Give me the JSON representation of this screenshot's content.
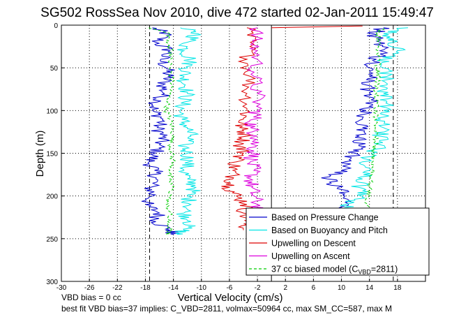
{
  "chart_data": {
    "type": "line",
    "title": "SG502 RossSea Nov 2010, dive 472 started 02-Jan-2011 15:49:47",
    "xlabel": "Vertical Velocity (cm/s)",
    "ylabel": "Depth (m)",
    "xlim": [
      -30,
      22
    ],
    "ylim": [
      0,
      300
    ],
    "y_reversed": true,
    "grid": true,
    "x_ticks": [
      -30,
      -26,
      -22,
      -18,
      -14,
      -10,
      -6,
      -2,
      2,
      6,
      10,
      14,
      18
    ],
    "y_ticks": [
      0,
      50,
      100,
      150,
      200,
      250,
      300
    ],
    "vertical_lines": [
      {
        "x": -17.4,
        "style": "dashed",
        "color": "#000000"
      },
      {
        "x": 17.4,
        "style": "dashed",
        "color": "#000000"
      },
      {
        "x": 0,
        "style": "solid",
        "color": "#000000"
      }
    ],
    "legend_position": "bottom-right",
    "series": [
      {
        "name": "Based on Pressure Change",
        "color": "#0000cc",
        "style": "solid",
        "descent": {
          "depth": [
            3,
            10,
            20,
            30,
            40,
            50,
            60,
            70,
            80,
            90,
            100,
            110,
            120,
            130,
            140,
            150,
            160,
            170,
            180,
            190,
            200,
            210,
            220,
            230,
            240,
            245
          ],
          "velocity": [
            -17,
            -15,
            -16.5,
            -14.5,
            -15.8,
            -15,
            -14.8,
            -15.5,
            -15.3,
            -16.3,
            -17,
            -15.5,
            -16.3,
            -15.5,
            -16,
            -16.5,
            -17.5,
            -16.7,
            -16.5,
            -17.3,
            -17,
            -18,
            -16,
            -16.5,
            -14.5,
            -14
          ]
        },
        "ascent": {
          "depth": [
            245,
            230,
            220,
            210,
            200,
            190,
            180,
            170,
            160,
            150,
            140,
            130,
            120,
            110,
            100,
            90,
            80,
            70,
            60,
            50,
            40,
            30,
            20,
            10,
            3
          ],
          "velocity": [
            9,
            9.5,
            10.5,
            11,
            10.5,
            9.5,
            8,
            10,
            10.5,
            12,
            12.5,
            12.5,
            13,
            13,
            13.5,
            14.5,
            14,
            13.5,
            14,
            14,
            15,
            15.5,
            15.5,
            14.5,
            16
          ]
        }
      },
      {
        "name": "Based on Buoyancy and Pitch",
        "color": "#00e5e5",
        "style": "solid",
        "descent": {
          "depth": [
            3,
            10,
            20,
            30,
            40,
            50,
            60,
            70,
            80,
            90,
            100,
            110,
            120,
            130,
            140,
            150,
            160,
            170,
            180,
            190,
            200,
            210,
            220,
            230,
            240,
            245
          ],
          "velocity": [
            -13,
            -10.5,
            -12,
            -12.5,
            -11.5,
            -12,
            -12.5,
            -12.3,
            -12,
            -12.5,
            -13,
            -12.8,
            -12,
            -11.5,
            -12.5,
            -12,
            -11.8,
            -12.5,
            -12,
            -10.8,
            -12,
            -11.5,
            -12.5,
            -11.5,
            -12.5,
            -13.5
          ]
        },
        "ascent": {
          "depth": [
            245,
            230,
            220,
            210,
            200,
            190,
            180,
            170,
            160,
            150,
            140,
            130,
            120,
            110,
            100,
            90,
            80,
            70,
            60,
            50,
            40,
            30,
            20,
            10,
            3
          ],
          "velocity": [
            12,
            11,
            12.5,
            10.5,
            13,
            12.5,
            13,
            14,
            13,
            14.5,
            15.5,
            15.5,
            16,
            15.5,
            16,
            16.5,
            16,
            16.5,
            16.5,
            16,
            16,
            18,
            17.5,
            16,
            19.5
          ]
        }
      },
      {
        "name": "Upwelling on Descent",
        "color": "#dd0000",
        "style": "solid",
        "descent": {
          "depth": [
            3,
            20,
            40,
            60,
            80,
            100,
            110,
            120,
            130,
            140,
            150,
            160,
            170,
            180,
            190,
            200,
            210,
            220,
            230,
            240
          ],
          "velocity": [
            -3.5,
            -3,
            -3.5,
            -3,
            -3.5,
            -3.5,
            -4,
            -4.5,
            -3.5,
            -4.5,
            -4,
            -5,
            -5.5,
            -5.5,
            -6,
            -5,
            -3.5,
            -4,
            -3.5,
            -4
          ]
        },
        "ascent": {
          "depth": [
            3,
            2,
            1
          ],
          "velocity": [
            0,
            7,
            13
          ]
        }
      },
      {
        "name": "Upwelling on Ascent",
        "color": "#dd00dd",
        "style": "solid",
        "descent": {
          "depth": [
            3,
            20,
            40,
            60,
            80,
            100,
            110,
            120,
            130,
            140,
            150,
            160,
            170,
            180,
            190,
            200,
            210,
            220,
            230,
            240
          ],
          "velocity": [
            -2,
            -2.5,
            -2,
            -2.5,
            -2,
            -2,
            -2.5,
            -3,
            -2,
            -2.5,
            -2.5,
            -3,
            -2.5,
            -3,
            -2.8,
            -2.5,
            -2,
            -1.5,
            -2,
            -2.5
          ]
        },
        "ascent": {
          "depth": [],
          "velocity": []
        }
      },
      {
        "name": "37 cc biased model (C_VBD=2811)",
        "color": "#00cc00",
        "style": "dashed",
        "descent": {
          "depth": [
            3,
            10,
            20,
            30,
            40,
            50,
            60,
            70,
            80,
            90,
            100,
            110,
            120,
            130,
            140,
            150,
            160,
            170,
            180,
            190,
            200,
            210,
            220,
            230,
            240,
            245
          ],
          "velocity": [
            -17.5,
            -14.5,
            -15,
            -14.2,
            -14.5,
            -14.5,
            -14.3,
            -14.2,
            -14.5,
            -14.8,
            -15,
            -14.5,
            -14.2,
            -14,
            -14.5,
            -14.3,
            -14,
            -14.5,
            -14.5,
            -14.2,
            -14.5,
            -15,
            -14.5,
            -14.8,
            -14.5,
            -15
          ]
        },
        "ascent": {
          "depth": [
            245,
            230,
            220,
            210,
            200,
            190,
            180,
            170,
            160,
            150,
            140,
            130,
            120,
            110,
            100,
            90,
            80,
            70,
            60,
            50,
            40,
            30,
            20,
            10,
            3
          ],
          "velocity": [
            13.5,
            13.5,
            13.8,
            13.5,
            14,
            14,
            14.2,
            14.5,
            14.5,
            14.5,
            14.8,
            15,
            14.8,
            15,
            14.8,
            15.2,
            15,
            15,
            15.5,
            15,
            15.5,
            15.2,
            15.5,
            15,
            16
          ]
        }
      }
    ],
    "legend_entries": [
      {
        "label": "Based on Pressure Change",
        "color": "#0000cc",
        "style": "solid"
      },
      {
        "label": "Based on Buoyancy and Pitch",
        "color": "#00e5e5",
        "style": "solid"
      },
      {
        "label": "Upwelling on Descent",
        "color": "#dd0000",
        "style": "solid"
      },
      {
        "label": "Upwelling on Ascent",
        "color": "#dd00dd",
        "style": "solid"
      },
      {
        "label": "37 cc biased model (C",
        "sub": "VBD",
        "suffix": "=2811)",
        "color": "#00cc00",
        "style": "dashed"
      }
    ]
  },
  "notes": {
    "line1": "VBD bias = 0 cc",
    "line2": "best fit VBD bias=37 implies: C_VBD=2811, volmax=50964 cc, max SM_CC=587, max M"
  }
}
